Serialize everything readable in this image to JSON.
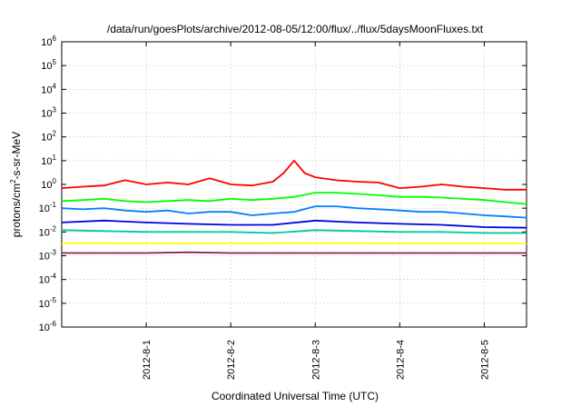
{
  "chart_data": {
    "type": "line",
    "title": "/data/run/goesPlots/archive/2012-08-05/12:00/flux/../flux/5daysMoonFluxes.txt",
    "xlabel": "Coordinated Universal Time (UTC)",
    "ylabel": "protons/cm2-s-sr-MeV",
    "ylabel_parts": {
      "pre": "protons/cm",
      "sup": "2",
      "post": "-s-sr-MeV"
    },
    "yscale": "log",
    "ylim": [
      1e-06,
      1000000.0
    ],
    "xlim": [
      "2012-07-31T00:00",
      "2012-08-05T12:00"
    ],
    "grid": true,
    "xticks": [
      {
        "x": "2012-08-01T00:00",
        "label": "2012-8-1"
      },
      {
        "x": "2012-08-02T00:00",
        "label": "2012-8-2"
      },
      {
        "x": "2012-08-03T00:00",
        "label": "2012-8-3"
      },
      {
        "x": "2012-08-04T00:00",
        "label": "2012-8-4"
      },
      {
        "x": "2012-08-05T00:00",
        "label": "2012-8-5"
      }
    ],
    "yticks": [
      {
        "y": 1e-06,
        "base": "10",
        "exp": "-6"
      },
      {
        "y": 1e-05,
        "base": "10",
        "exp": "-5"
      },
      {
        "y": 0.0001,
        "base": "10",
        "exp": "-4"
      },
      {
        "y": 0.001,
        "base": "10",
        "exp": "-3"
      },
      {
        "y": 0.01,
        "base": "10",
        "exp": "-2"
      },
      {
        "y": 0.1,
        "base": "10",
        "exp": "-1"
      },
      {
        "y": 1,
        "base": "10",
        "exp": "0"
      },
      {
        "y": 10,
        "base": "10",
        "exp": "1"
      },
      {
        "y": 100,
        "base": "10",
        "exp": "2"
      },
      {
        "y": 1000,
        "base": "10",
        "exp": "3"
      },
      {
        "y": 10000,
        "base": "10",
        "exp": "4"
      },
      {
        "y": 100000,
        "base": "10",
        "exp": "5"
      },
      {
        "y": 1000000,
        "base": "10",
        "exp": "6"
      }
    ],
    "series": [
      {
        "color": "#ff0000",
        "x": [
          "2012-07-31T00:00",
          "2012-07-31T06:00",
          "2012-07-31T12:00",
          "2012-07-31T18:00",
          "2012-08-01T00:00",
          "2012-08-01T06:00",
          "2012-08-01T12:00",
          "2012-08-01T18:00",
          "2012-08-02T00:00",
          "2012-08-02T06:00",
          "2012-08-02T12:00",
          "2012-08-02T15:00",
          "2012-08-02T18:00",
          "2012-08-02T21:00",
          "2012-08-03T00:00",
          "2012-08-03T06:00",
          "2012-08-03T12:00",
          "2012-08-03T18:00",
          "2012-08-04T00:00",
          "2012-08-04T06:00",
          "2012-08-04T12:00",
          "2012-08-04T18:00",
          "2012-08-05T00:00",
          "2012-08-05T06:00",
          "2012-08-05T12:00"
        ],
        "y": [
          0.7,
          0.8,
          0.9,
          1.5,
          1.0,
          1.2,
          1.0,
          1.8,
          1.0,
          0.9,
          1.3,
          3.0,
          10.0,
          3.0,
          2.0,
          1.5,
          1.3,
          1.2,
          0.7,
          0.8,
          1.0,
          0.8,
          0.7,
          0.6,
          0.6
        ]
      },
      {
        "color": "#00ff00",
        "x": [
          "2012-07-31T00:00",
          "2012-07-31T06:00",
          "2012-07-31T12:00",
          "2012-07-31T18:00",
          "2012-08-01T00:00",
          "2012-08-01T06:00",
          "2012-08-01T12:00",
          "2012-08-01T18:00",
          "2012-08-02T00:00",
          "2012-08-02T06:00",
          "2012-08-02T12:00",
          "2012-08-02T18:00",
          "2012-08-03T00:00",
          "2012-08-03T06:00",
          "2012-08-03T12:00",
          "2012-08-03T18:00",
          "2012-08-04T00:00",
          "2012-08-04T06:00",
          "2012-08-04T12:00",
          "2012-08-04T18:00",
          "2012-08-05T00:00",
          "2012-08-05T06:00",
          "2012-08-05T12:00"
        ],
        "y": [
          0.2,
          0.22,
          0.25,
          0.2,
          0.18,
          0.2,
          0.22,
          0.2,
          0.25,
          0.22,
          0.25,
          0.3,
          0.45,
          0.45,
          0.4,
          0.35,
          0.3,
          0.3,
          0.28,
          0.25,
          0.22,
          0.18,
          0.15
        ]
      },
      {
        "color": "#0080ff",
        "x": [
          "2012-07-31T00:00",
          "2012-07-31T06:00",
          "2012-07-31T12:00",
          "2012-07-31T18:00",
          "2012-08-01T00:00",
          "2012-08-01T06:00",
          "2012-08-01T12:00",
          "2012-08-01T18:00",
          "2012-08-02T00:00",
          "2012-08-02T06:00",
          "2012-08-02T12:00",
          "2012-08-02T18:00",
          "2012-08-03T00:00",
          "2012-08-03T06:00",
          "2012-08-03T12:00",
          "2012-08-03T18:00",
          "2012-08-04T00:00",
          "2012-08-04T06:00",
          "2012-08-04T12:00",
          "2012-08-04T18:00",
          "2012-08-05T00:00",
          "2012-08-05T06:00",
          "2012-08-05T12:00"
        ],
        "y": [
          0.1,
          0.09,
          0.1,
          0.08,
          0.07,
          0.08,
          0.06,
          0.07,
          0.07,
          0.05,
          0.06,
          0.07,
          0.12,
          0.12,
          0.1,
          0.09,
          0.08,
          0.07,
          0.07,
          0.06,
          0.05,
          0.045,
          0.04
        ]
      },
      {
        "color": "#0000e0",
        "x": [
          "2012-07-31T00:00",
          "2012-07-31T12:00",
          "2012-08-01T00:00",
          "2012-08-01T12:00",
          "2012-08-02T00:00",
          "2012-08-02T12:00",
          "2012-08-03T00:00",
          "2012-08-03T12:00",
          "2012-08-04T00:00",
          "2012-08-04T12:00",
          "2012-08-05T00:00",
          "2012-08-05T12:00"
        ],
        "y": [
          0.025,
          0.03,
          0.025,
          0.022,
          0.02,
          0.02,
          0.03,
          0.025,
          0.022,
          0.02,
          0.016,
          0.015
        ]
      },
      {
        "color": "#00c8a0",
        "x": [
          "2012-07-31T00:00",
          "2012-07-31T12:00",
          "2012-08-01T00:00",
          "2012-08-01T12:00",
          "2012-08-02T00:00",
          "2012-08-02T12:00",
          "2012-08-03T00:00",
          "2012-08-03T12:00",
          "2012-08-04T00:00",
          "2012-08-04T12:00",
          "2012-08-05T00:00",
          "2012-08-05T12:00"
        ],
        "y": [
          0.012,
          0.011,
          0.01,
          0.01,
          0.01,
          0.009,
          0.012,
          0.011,
          0.01,
          0.01,
          0.009,
          0.009
        ]
      },
      {
        "color": "#ffff00",
        "x": [
          "2012-07-31T00:00",
          "2012-07-31T12:00",
          "2012-08-01T00:00",
          "2012-08-01T12:00",
          "2012-08-02T00:00",
          "2012-08-02T12:00",
          "2012-08-03T00:00",
          "2012-08-03T12:00",
          "2012-08-04T00:00",
          "2012-08-04T12:00",
          "2012-08-05T00:00",
          "2012-08-05T12:00"
        ],
        "y": [
          0.0034,
          0.0034,
          0.0033,
          0.0033,
          0.0033,
          0.0034,
          0.0034,
          0.0034,
          0.0033,
          0.0033,
          0.0033,
          0.0033
        ]
      },
      {
        "color": "#8b2252",
        "x": [
          "2012-07-31T00:00",
          "2012-07-31T12:00",
          "2012-08-01T00:00",
          "2012-08-01T12:00",
          "2012-08-02T00:00",
          "2012-08-02T12:00",
          "2012-08-03T00:00",
          "2012-08-03T12:00",
          "2012-08-04T00:00",
          "2012-08-04T12:00",
          "2012-08-05T00:00",
          "2012-08-05T12:00"
        ],
        "y": [
          0.0013,
          0.0013,
          0.0013,
          0.0014,
          0.0013,
          0.0013,
          0.0013,
          0.0013,
          0.0013,
          0.0013,
          0.0013,
          0.0013
        ]
      }
    ]
  }
}
